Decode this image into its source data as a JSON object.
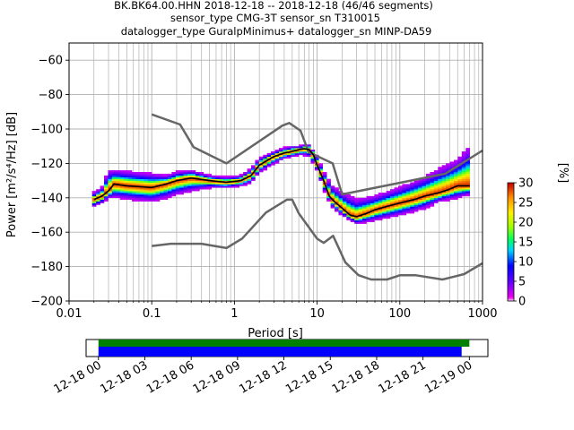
{
  "title": {
    "line1": "BK.BK64.00.HHN   2018-12-18 -- 2018-12-18  (46/46 segments)",
    "line2": "sensor_type CMG-3T sensor_sn T310015",
    "line3": "datalogger_type GuralpMinimus+ datalogger_sn MINP-DA59"
  },
  "chart_data": {
    "type": "heatmap",
    "xlabel": "Period [s]",
    "ylabel": "Power [m²/s⁴/Hz] [dB]",
    "xscale": "log",
    "xlim": [
      0.01,
      1000
    ],
    "ylim": [
      -200,
      -50
    ],
    "grid": true,
    "xticks": [
      {
        "value": 0.01,
        "label": "0.01"
      },
      {
        "value": 0.1,
        "label": "0.1"
      },
      {
        "value": 1,
        "label": "1"
      },
      {
        "value": 10,
        "label": "10"
      },
      {
        "value": 100,
        "label": "100"
      },
      {
        "value": 1000,
        "label": "1000"
      }
    ],
    "yticks": [
      {
        "value": -60,
        "label": "−60"
      },
      {
        "value": -80,
        "label": "−80"
      },
      {
        "value": -100,
        "label": "−100"
      },
      {
        "value": -120,
        "label": "−120"
      },
      {
        "value": -140,
        "label": "−140"
      },
      {
        "value": -160,
        "label": "−160"
      },
      {
        "value": -180,
        "label": "−180"
      },
      {
        "value": -200,
        "label": "−200"
      }
    ],
    "nhnm": {
      "x": [
        0.1,
        0.22,
        0.32,
        0.8,
        3.8,
        4.6,
        6.3,
        7.9,
        15.4,
        20,
        354.8,
        1000
      ],
      "y": [
        -91.5,
        -97.4,
        -110.5,
        -120,
        -98,
        -96.5,
        -101,
        -113.5,
        -120,
        -138,
        -126,
        -112.5
      ]
    },
    "nlnm": {
      "x": [
        0.1,
        0.17,
        0.4,
        0.8,
        1.24,
        2.4,
        4.3,
        5.0,
        6.0,
        10.0,
        12.0,
        15.6,
        21.9,
        31.6,
        45.0,
        70.0,
        101.0,
        154.0,
        328.0,
        600.0,
        1000.0
      ],
      "y": [
        -168,
        -166.7,
        -166.7,
        -169.2,
        -163.7,
        -148.6,
        -141.1,
        -141.1,
        -149,
        -163.8,
        -166.2,
        -162.1,
        -177.5,
        -185,
        -187.5,
        -187.5,
        -185,
        -185,
        -187.5,
        -184.4,
        -178
      ]
    },
    "mode": {
      "x": [
        0.02,
        0.025,
        0.03,
        0.035,
        0.05,
        0.07,
        0.1,
        0.15,
        0.2,
        0.3,
        0.5,
        0.8,
        1.2,
        1.6,
        2.0,
        3.0,
        4.0,
        5.0,
        6.0,
        7.0,
        8.0,
        9.0,
        10.0,
        12.0,
        14.0,
        16.0,
        20.0,
        25.0,
        30.0,
        40.0,
        50.0,
        70.0,
        100.0,
        150.0,
        200.0,
        300.0,
        400.0,
        500.0,
        700.0
      ],
      "y": [
        -141,
        -139,
        -136,
        -132,
        -133,
        -133.5,
        -134,
        -132,
        -130,
        -128.5,
        -130,
        -131,
        -130,
        -127,
        -121,
        -116,
        -114,
        -113,
        -112,
        -111.5,
        -112,
        -115,
        -121,
        -130,
        -139,
        -142,
        -146,
        -150,
        -151,
        -149,
        -147,
        -145,
        -143,
        -141,
        -139,
        -137,
        -135,
        -133,
        -133
      ]
    },
    "spread": {
      "x": [
        0.02,
        0.025,
        0.03,
        0.04,
        0.06,
        0.1,
        0.15,
        0.2,
        0.3,
        0.5,
        0.8,
        1.2,
        1.6,
        2.0,
        3.0,
        4.0,
        5.0,
        6.0,
        7.0,
        8.0,
        10.0,
        12.0,
        15.0,
        20.0,
        30.0,
        50.0,
        100.0,
        200.0,
        300.0,
        500.0,
        700.0
      ],
      "upper": [
        -137,
        -134,
        -124,
        -124,
        -125,
        -126,
        -127,
        -125,
        -124,
        -127,
        -128,
        -127,
        -123,
        -117,
        -113,
        -111,
        -110,
        -110,
        -109,
        -109,
        -116,
        -125,
        -133,
        -137,
        -141,
        -139,
        -134,
        -128,
        -123,
        -118,
        -110
      ],
      "lower": [
        -145,
        -143,
        -140,
        -140,
        -141,
        -142,
        -140,
        -138,
        -136,
        -134,
        -134,
        -133,
        -131,
        -125,
        -120,
        -117,
        -116,
        -115,
        -115,
        -116,
        -124,
        -135,
        -145,
        -150,
        -155,
        -153,
        -150,
        -146,
        -142,
        -140,
        -138
      ]
    },
    "colorbar": {
      "label": "[%]",
      "min": 0,
      "max": 30,
      "ticks": [
        {
          "value": 0,
          "label": "0"
        },
        {
          "value": 5,
          "label": "5"
        },
        {
          "value": 10,
          "label": "10"
        },
        {
          "value": 15,
          "label": "15"
        },
        {
          "value": 20,
          "label": "20"
        },
        {
          "value": 25,
          "label": "25"
        },
        {
          "value": 30,
          "label": "30"
        }
      ]
    },
    "timeline": {
      "start_hours": -0.8,
      "end_hours": 25.2,
      "green_bar": [
        0,
        24.0
      ],
      "blue_bar": [
        0,
        23.5
      ],
      "green_color": "#008000",
      "blue_color": "#0000ff",
      "ticks": [
        {
          "hours": 0,
          "label": "12-18 00"
        },
        {
          "hours": 3,
          "label": "12-18 03"
        },
        {
          "hours": 6,
          "label": "12-18 06"
        },
        {
          "hours": 9,
          "label": "12-18 09"
        },
        {
          "hours": 12,
          "label": "12-18 12"
        },
        {
          "hours": 15,
          "label": "12-18 15"
        },
        {
          "hours": 18,
          "label": "12-18 18"
        },
        {
          "hours": 21,
          "label": "12-18 21"
        },
        {
          "hours": 24,
          "label": "12-19 00"
        }
      ]
    }
  }
}
